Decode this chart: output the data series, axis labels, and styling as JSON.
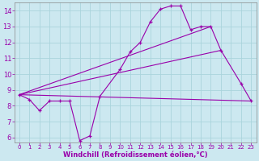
{
  "background_color": "#cce8f0",
  "grid_color": "#aad4dc",
  "line_color": "#9900aa",
  "xlim": [
    -0.5,
    23.5
  ],
  "ylim": [
    5.7,
    14.5
  ],
  "xlabel": "Windchill (Refroidissement éolien,°C)",
  "xticks": [
    0,
    1,
    2,
    3,
    4,
    5,
    6,
    7,
    8,
    9,
    10,
    11,
    12,
    13,
    14,
    15,
    16,
    17,
    18,
    19,
    20,
    21,
    22,
    23
  ],
  "yticks": [
    6,
    7,
    8,
    9,
    10,
    11,
    12,
    13,
    14
  ],
  "series1_x": [
    0,
    1,
    2,
    3,
    4,
    5,
    6,
    7,
    8,
    10,
    11,
    12,
    13,
    14,
    15,
    16,
    17,
    18,
    19,
    20,
    22,
    23
  ],
  "series1_y": [
    8.7,
    8.4,
    7.7,
    8.3,
    8.3,
    8.3,
    5.8,
    6.1,
    8.6,
    10.3,
    11.4,
    12.0,
    13.3,
    14.1,
    14.3,
    14.3,
    12.8,
    13.0,
    13.0,
    11.5,
    9.4,
    8.3
  ],
  "series2_x": [
    0,
    23
  ],
  "series2_y": [
    8.7,
    8.3
  ],
  "series3_x": [
    0,
    20
  ],
  "series3_y": [
    8.7,
    11.5
  ],
  "series4_x": [
    0,
    19
  ],
  "series4_y": [
    8.7,
    13.0
  ],
  "xlabel_fontsize": 6,
  "tick_fontsize_x": 5,
  "tick_fontsize_y": 6
}
